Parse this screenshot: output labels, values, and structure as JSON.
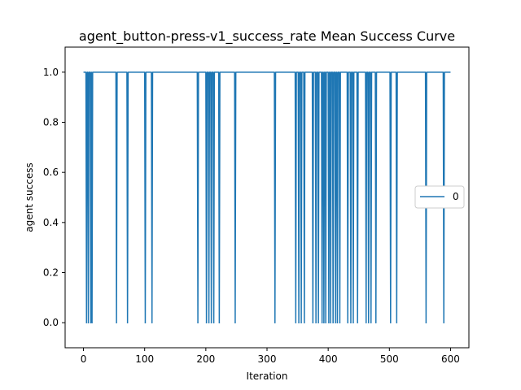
{
  "chart_data": {
    "type": "line",
    "title": "agent_button-press-v1_success_rate Mean Success Curve",
    "xlabel": "Iteration",
    "ylabel": "agent success",
    "xlim": [
      -30,
      630
    ],
    "ylim": [
      -0.1,
      1.1
    ],
    "xticks": [
      0,
      100,
      200,
      300,
      400,
      500,
      600
    ],
    "yticks": [
      0.0,
      0.2,
      0.4,
      0.6,
      0.8,
      1.0
    ],
    "xtick_labels": [
      "0",
      "100",
      "200",
      "300",
      "400",
      "500",
      "600"
    ],
    "ytick_labels": [
      "0.0",
      "0.2",
      "0.4",
      "0.6",
      "0.8",
      "1.0"
    ],
    "grid": false,
    "legend_position": "center-right",
    "series": [
      {
        "name": "0",
        "color": "#1f77b4",
        "x_start": 0,
        "x_end": 600,
        "baseline_value": 1,
        "zero_value_iterations": [
          5,
          8,
          12,
          14,
          54,
          72,
          101,
          112,
          187,
          201,
          205,
          209,
          213,
          222,
          248,
          313,
          347,
          352,
          356,
          361,
          375,
          380,
          384,
          390,
          393,
          396,
          401,
          404,
          408,
          412,
          415,
          419,
          432,
          437,
          441,
          448,
          462,
          466,
          470,
          478,
          502,
          512,
          560,
          589
        ]
      }
    ]
  }
}
